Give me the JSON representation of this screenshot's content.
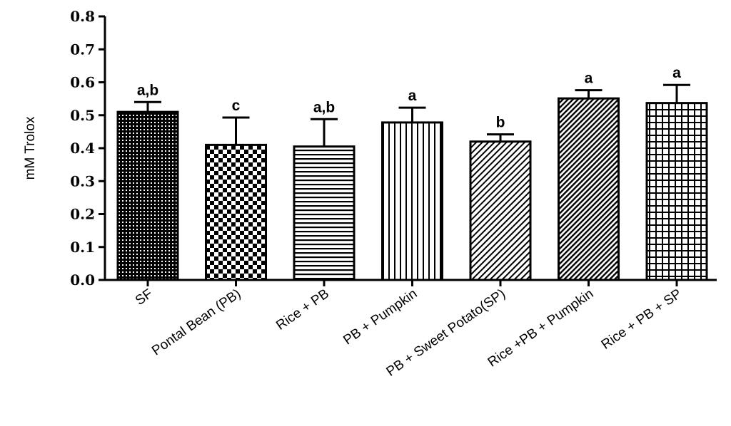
{
  "chart_data": {
    "type": "bar",
    "ylabel": "mM Trolox",
    "xlabel": "",
    "title": "",
    "ylim": [
      0,
      0.8
    ],
    "yticks": [
      "0.0",
      "0.1",
      "0.2",
      "0.3",
      "0.4",
      "0.5",
      "0.6",
      "0.7",
      "0.8"
    ],
    "categories": [
      "SF",
      "Pontal Bean (PB)",
      "Rice + PB",
      "PB + Pumpkin",
      "PB + Sweet Potato(SP)",
      "Rice +PB + Pumpkin",
      "Rice + PB + SP"
    ],
    "values": [
      0.51,
      0.41,
      0.405,
      0.478,
      0.42,
      0.551,
      0.537
    ],
    "errors": [
      0.03,
      0.083,
      0.083,
      0.045,
      0.022,
      0.025,
      0.055
    ],
    "significance": [
      "a,b",
      "c",
      "a,b",
      "a",
      "b",
      "a",
      "a"
    ],
    "patterns": [
      "dots",
      "checker",
      "horizontal",
      "vertical",
      "diagonal-fine",
      "diagonal-dense",
      "grid"
    ],
    "colors": {
      "fill": "#000000",
      "background": "#ffffff"
    }
  }
}
